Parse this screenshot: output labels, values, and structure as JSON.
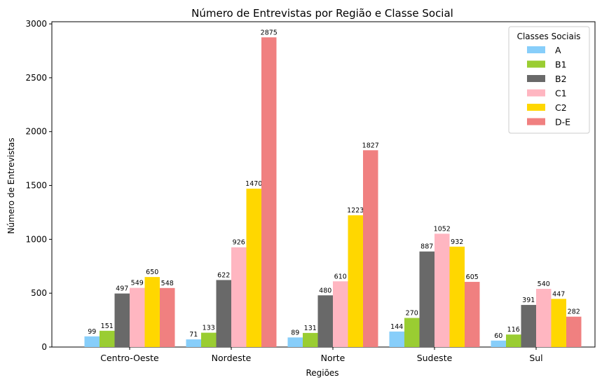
{
  "chart_data": {
    "type": "bar",
    "title": "Número de Entrevistas por Região e Classe Social",
    "xlabel": "Regiões",
    "ylabel": "Número de Entrevistas",
    "ylim": [
      0,
      3020
    ],
    "yticks": [
      0,
      500,
      1000,
      1500,
      2000,
      2500,
      3000
    ],
    "grid": false,
    "legend_title": "Classes Sociais",
    "legend_position": "top-right",
    "categories": [
      "Centro-Oeste",
      "Nordeste",
      "Norte",
      "Sudeste",
      "Sul"
    ],
    "series": [
      {
        "name": "A",
        "color": "#87CEFA",
        "values": [
          99,
          71,
          89,
          144,
          60
        ]
      },
      {
        "name": "B1",
        "color": "#9ACD32",
        "values": [
          151,
          133,
          131,
          270,
          116
        ]
      },
      {
        "name": "B2",
        "color": "#696969",
        "values": [
          497,
          622,
          480,
          887,
          391
        ]
      },
      {
        "name": "C1",
        "color": "#FFB6C1",
        "values": [
          549,
          926,
          610,
          1052,
          540
        ]
      },
      {
        "name": "C2",
        "color": "#FFD700",
        "values": [
          650,
          1470,
          1223,
          932,
          447
        ]
      },
      {
        "name": "D-E",
        "color": "#F08080",
        "values": [
          548,
          2875,
          1827,
          605,
          282
        ]
      }
    ]
  }
}
